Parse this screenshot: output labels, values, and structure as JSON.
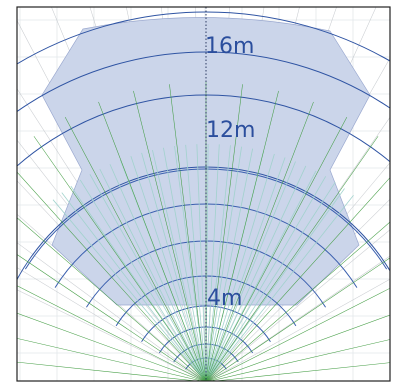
{
  "range_labels": {
    "far": "16m",
    "mid": "12m",
    "near": "4m"
  },
  "colors": {
    "coverage_fill": "#cbd5ea",
    "range_ring": "#2f54a3",
    "beam_teal": "#9fd2cb",
    "beam_green": "#3d9a3d",
    "label": "#2b4e9d"
  }
}
